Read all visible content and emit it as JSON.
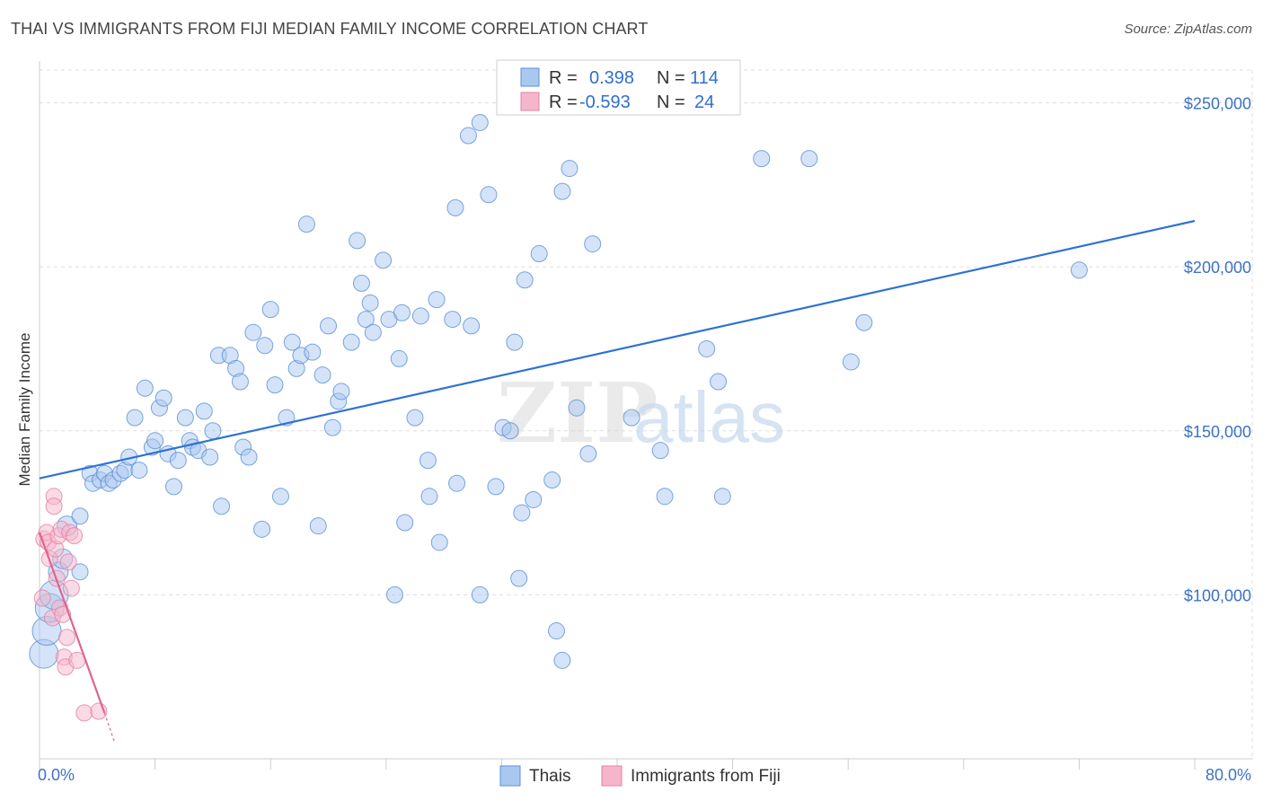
{
  "title": "THAI VS IMMIGRANTS FROM FIJI MEDIAN FAMILY INCOME CORRELATION CHART",
  "source": "Source: ZipAtlas.com",
  "watermark": {
    "zip": "ZIP",
    "atlas": "atlas"
  },
  "colors": {
    "blue": "#a9c8ef",
    "blue_stroke": "#5b8fd6",
    "blue_line": "#2f72d3",
    "pink": "#f5b6cb",
    "pink_stroke": "#e580a3",
    "pink_line": "#e0648f"
  },
  "chart_data": {
    "type": "scatter",
    "title": "THAI VS IMMIGRANTS FROM FIJI MEDIAN FAMILY INCOME CORRELATION CHART",
    "xlabel": "",
    "ylabel": "Median Family Income",
    "xlim": [
      0,
      80
    ],
    "ylim": [
      50000,
      260000
    ],
    "x_tick_labels": [
      "0.0%",
      "80.0%"
    ],
    "y_ticks": [
      100000,
      150000,
      200000,
      250000
    ],
    "y_tick_labels": [
      "$100,000",
      "$150,000",
      "$200,000",
      "$250,000"
    ],
    "grid": true,
    "legend": [
      {
        "name": "Thais",
        "r_label": "R =",
        "r": "0.398",
        "n_label": "N =",
        "n": "114"
      },
      {
        "name": "Immigrants from Fiji",
        "r_label": "R =",
        "r": "-0.593",
        "n_label": "N =",
        "n": "24"
      }
    ],
    "series": [
      {
        "name": "Thais",
        "trend": {
          "x": [
            0,
            80
          ],
          "y": [
            135500,
            214000
          ]
        },
        "points": [
          [
            0.3,
            82000
          ],
          [
            0.5,
            89000
          ],
          [
            0.7,
            96000
          ],
          [
            1.0,
            100000
          ],
          [
            1.3,
            107000
          ],
          [
            1.6,
            111000
          ],
          [
            1.9,
            121000
          ],
          [
            2.8,
            107000
          ],
          [
            2.8,
            124000
          ],
          [
            3.5,
            137000
          ],
          [
            3.7,
            134000
          ],
          [
            4.2,
            135000
          ],
          [
            4.5,
            137000
          ],
          [
            4.8,
            134000
          ],
          [
            5.1,
            135000
          ],
          [
            5.6,
            137000
          ],
          [
            5.9,
            138000
          ],
          [
            6.2,
            142000
          ],
          [
            6.6,
            154000
          ],
          [
            6.9,
            138000
          ],
          [
            7.3,
            163000
          ],
          [
            7.8,
            145000
          ],
          [
            8.0,
            147000
          ],
          [
            8.3,
            157000
          ],
          [
            8.6,
            160000
          ],
          [
            8.9,
            143000
          ],
          [
            9.3,
            133000
          ],
          [
            9.6,
            141000
          ],
          [
            10.1,
            154000
          ],
          [
            10.4,
            147000
          ],
          [
            10.6,
            145000
          ],
          [
            11.0,
            144000
          ],
          [
            11.4,
            156000
          ],
          [
            11.8,
            142000
          ],
          [
            12.0,
            150000
          ],
          [
            12.4,
            173000
          ],
          [
            12.6,
            127000
          ],
          [
            13.2,
            173000
          ],
          [
            13.6,
            169000
          ],
          [
            13.9,
            165000
          ],
          [
            14.1,
            145000
          ],
          [
            14.5,
            142000
          ],
          [
            14.8,
            180000
          ],
          [
            15.4,
            120000
          ],
          [
            15.6,
            176000
          ],
          [
            16.0,
            187000
          ],
          [
            16.3,
            164000
          ],
          [
            16.7,
            130000
          ],
          [
            17.1,
            154000
          ],
          [
            17.5,
            177000
          ],
          [
            17.8,
            169000
          ],
          [
            18.1,
            173000
          ],
          [
            18.5,
            213000
          ],
          [
            18.9,
            174000
          ],
          [
            19.3,
            121000
          ],
          [
            19.6,
            167000
          ],
          [
            20.0,
            182000
          ],
          [
            20.3,
            151000
          ],
          [
            20.7,
            159000
          ],
          [
            20.9,
            162000
          ],
          [
            21.6,
            177000
          ],
          [
            22.0,
            208000
          ],
          [
            22.3,
            195000
          ],
          [
            22.6,
            184000
          ],
          [
            22.9,
            189000
          ],
          [
            23.1,
            180000
          ],
          [
            23.8,
            202000
          ],
          [
            24.2,
            184000
          ],
          [
            24.6,
            100000
          ],
          [
            24.9,
            172000
          ],
          [
            25.1,
            186000
          ],
          [
            25.3,
            122000
          ],
          [
            26.0,
            154000
          ],
          [
            26.4,
            185000
          ],
          [
            26.9,
            141000
          ],
          [
            27.0,
            130000
          ],
          [
            27.5,
            190000
          ],
          [
            27.7,
            116000
          ],
          [
            28.6,
            184000
          ],
          [
            28.9,
            134000
          ],
          [
            28.8,
            218000
          ],
          [
            29.7,
            240000
          ],
          [
            29.9,
            182000
          ],
          [
            30.5,
            244000
          ],
          [
            30.5,
            100000
          ],
          [
            31.1,
            222000
          ],
          [
            31.6,
            133000
          ],
          [
            32.1,
            151000
          ],
          [
            32.6,
            150000
          ],
          [
            32.9,
            177000
          ],
          [
            33.2,
            105000
          ],
          [
            33.4,
            125000
          ],
          [
            33.6,
            196000
          ],
          [
            34.2,
            129000
          ],
          [
            34.6,
            204000
          ],
          [
            35.5,
            135000
          ],
          [
            35.8,
            89000
          ],
          [
            36.2,
            80000
          ],
          [
            36.2,
            223000
          ],
          [
            36.7,
            230000
          ],
          [
            37.2,
            157000
          ],
          [
            38.0,
            143000
          ],
          [
            38.3,
            207000
          ],
          [
            41.0,
            154000
          ],
          [
            43.0,
            144000
          ],
          [
            43.3,
            130000
          ],
          [
            46.2,
            175000
          ],
          [
            47.0,
            165000
          ],
          [
            47.3,
            130000
          ],
          [
            50.0,
            233000
          ],
          [
            53.3,
            233000
          ],
          [
            56.2,
            171000
          ],
          [
            57.1,
            183000
          ],
          [
            72.0,
            199000
          ]
        ]
      },
      {
        "name": "Immigrants from Fiji",
        "trend": {
          "x": [
            0,
            4.5
          ],
          "y": [
            119000,
            64000
          ]
        },
        "trend_dashed": {
          "x": [
            4.5,
            5.2
          ],
          "y": [
            64000,
            55000
          ]
        },
        "points": [
          [
            0.2,
            99000
          ],
          [
            0.3,
            117000
          ],
          [
            0.5,
            119000
          ],
          [
            0.6,
            116000
          ],
          [
            0.7,
            111000
          ],
          [
            0.9,
            93000
          ],
          [
            1.0,
            130000
          ],
          [
            1.0,
            127000
          ],
          [
            1.1,
            114000
          ],
          [
            1.2,
            105000
          ],
          [
            1.3,
            118000
          ],
          [
            1.4,
            96000
          ],
          [
            1.5,
            120000
          ],
          [
            1.6,
            94000
          ],
          [
            1.7,
            81000
          ],
          [
            1.8,
            78000
          ],
          [
            1.9,
            87000
          ],
          [
            2.0,
            110000
          ],
          [
            2.1,
            119000
          ],
          [
            2.2,
            102000
          ],
          [
            2.4,
            118000
          ],
          [
            2.6,
            80000
          ],
          [
            3.1,
            64000
          ],
          [
            4.1,
            64500
          ]
        ]
      }
    ]
  }
}
